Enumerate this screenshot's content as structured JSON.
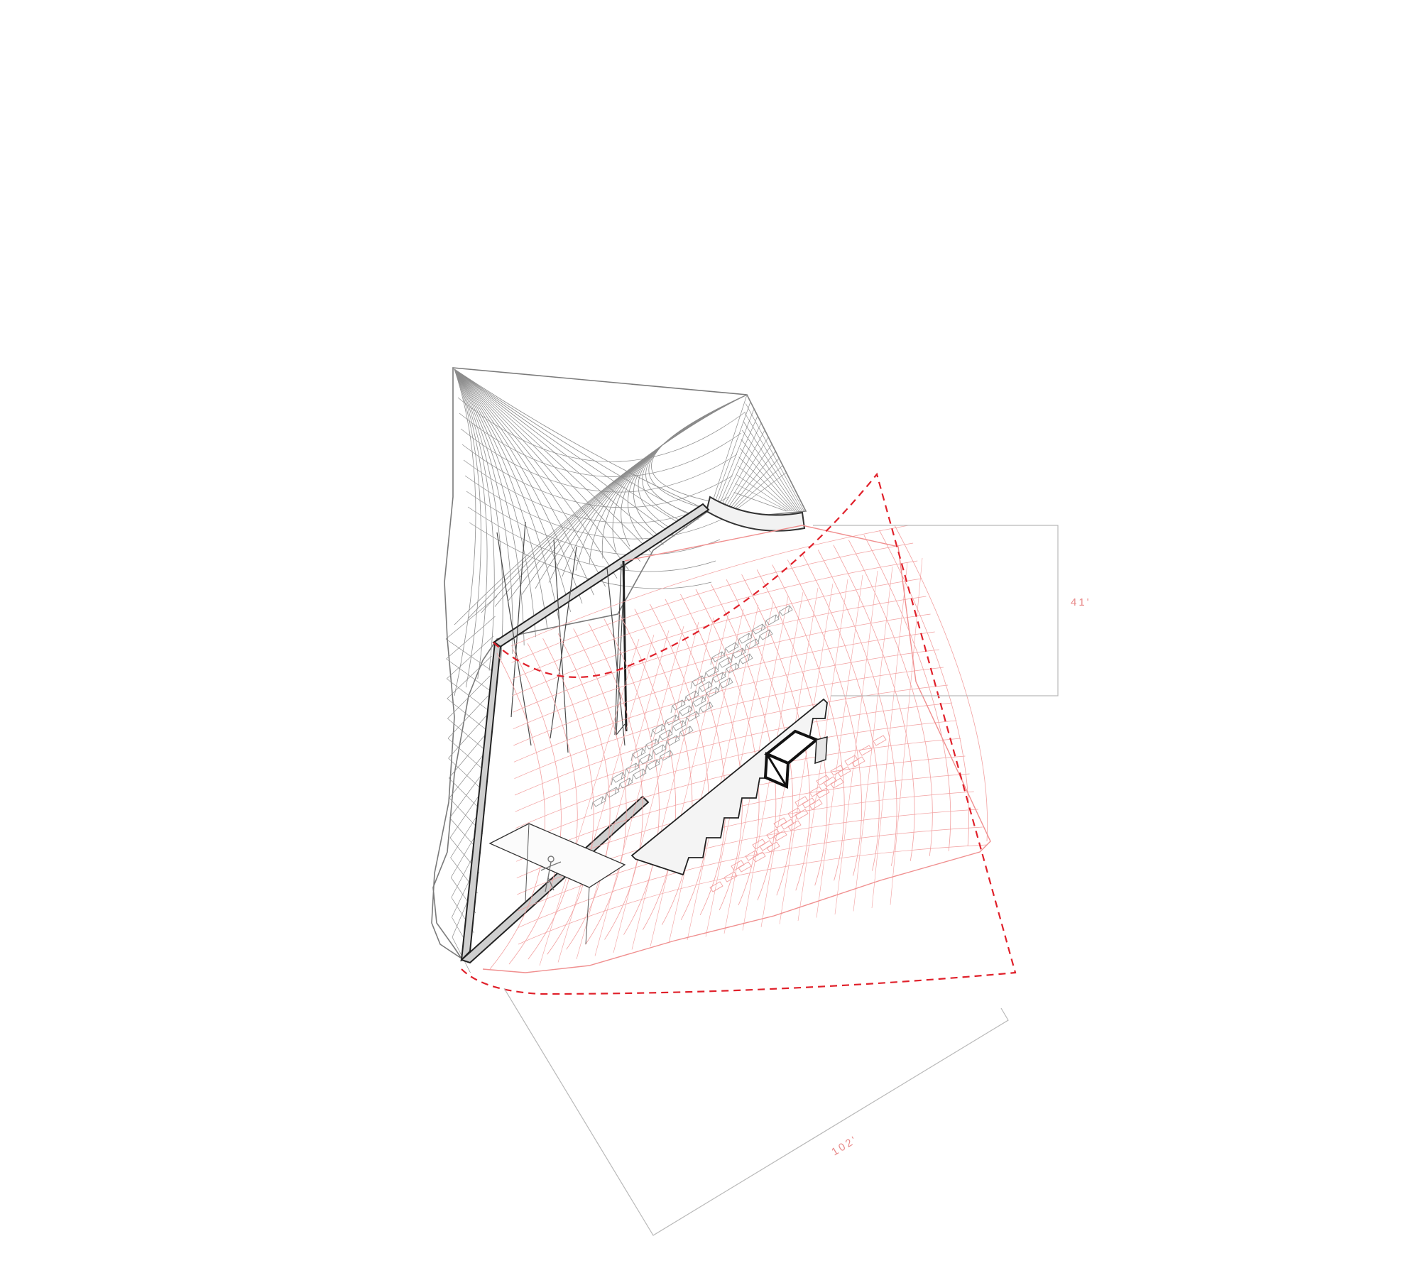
{
  "drawing": {
    "colors": {
      "background": "#ffffff",
      "structure": "#7a7a7a",
      "structure_dark": "#222222",
      "projection": "#f08f8f",
      "projection_dashed": "#e0202a",
      "dimension_line": "#b9b9b9",
      "dimension_text": "#e88a8a"
    },
    "dimensions": {
      "height_label": "41'",
      "length_label": "102'"
    }
  }
}
